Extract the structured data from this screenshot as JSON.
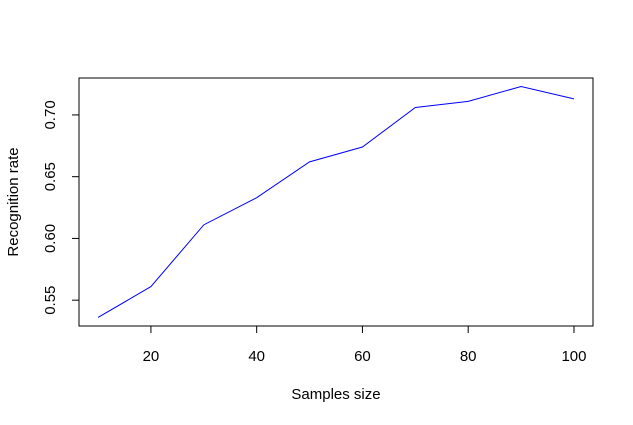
{
  "chart_data": {
    "type": "line",
    "xlabel": "Samples size",
    "ylabel": "Recognition rate",
    "x": [
      10,
      20,
      30,
      40,
      50,
      60,
      70,
      80,
      90,
      100
    ],
    "series": [
      {
        "values": [
          0.536,
          0.561,
          0.611,
          0.633,
          0.662,
          0.674,
          0.706,
          0.711,
          0.723,
          0.713
        ],
        "color": "#0000ff"
      }
    ],
    "xticks": [
      20,
      40,
      60,
      80,
      100
    ],
    "yticks": [
      0.55,
      0.6,
      0.65,
      0.7
    ],
    "ytick_labels": [
      "0.55",
      "0.60",
      "0.65",
      "0.70"
    ],
    "xlim": [
      6.4,
      103.6
    ],
    "ylim": [
      0.5291,
      0.7299
    ],
    "grid": false,
    "legend": "none"
  }
}
